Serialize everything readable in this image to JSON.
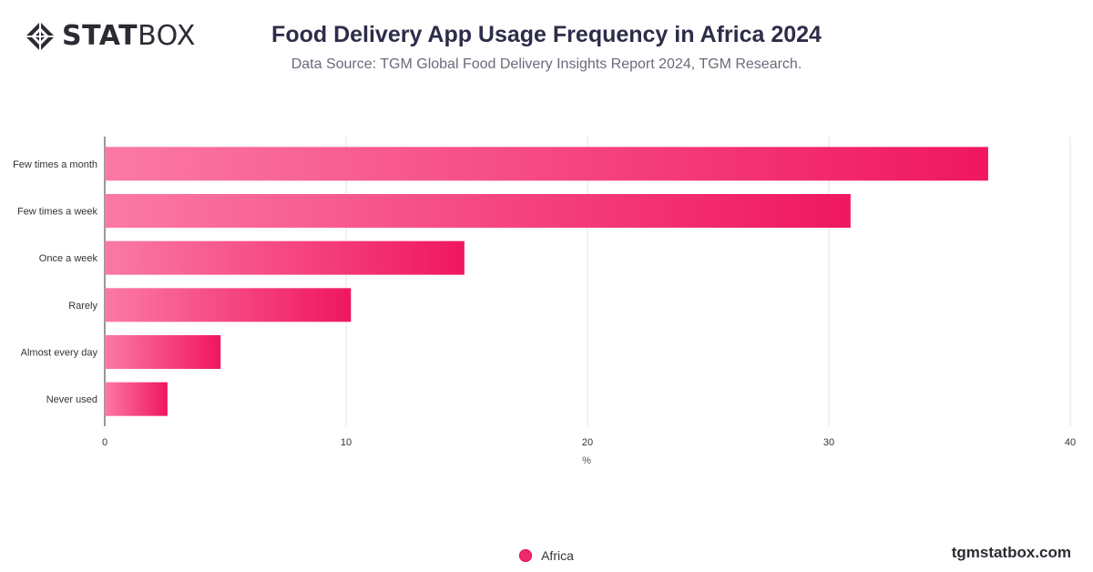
{
  "brand": {
    "logo_bold": "STAT",
    "logo_regular": "BOX",
    "logo_icon": "diamond-grid-icon",
    "site": "tgmstatbox.com"
  },
  "colors": {
    "bar_start": "#fb79a6",
    "bar_end": "#f0175f",
    "axis": "#333333",
    "grid": "#e3e3e3"
  },
  "chart_data": {
    "type": "bar",
    "orientation": "horizontal",
    "title": "Food Delivery App Usage Frequency in Africa 2024",
    "subtitle": "Data Source: TGM Global Food Delivery Insights Report 2024, TGM Research.",
    "categories": [
      "Few times a month",
      "Few times a week",
      "Once a week",
      "Rarely",
      "Almost every day",
      "Never used"
    ],
    "series": [
      {
        "name": "Africa",
        "values": [
          36.6,
          30.9,
          14.9,
          10.2,
          4.8,
          2.6
        ]
      }
    ],
    "xlabel": "%",
    "ylabel": "",
    "xlim": [
      0,
      40
    ],
    "xticks": [
      "0",
      "10",
      "20",
      "30",
      "40"
    ],
    "grid": true,
    "legend": "bottom-center"
  }
}
